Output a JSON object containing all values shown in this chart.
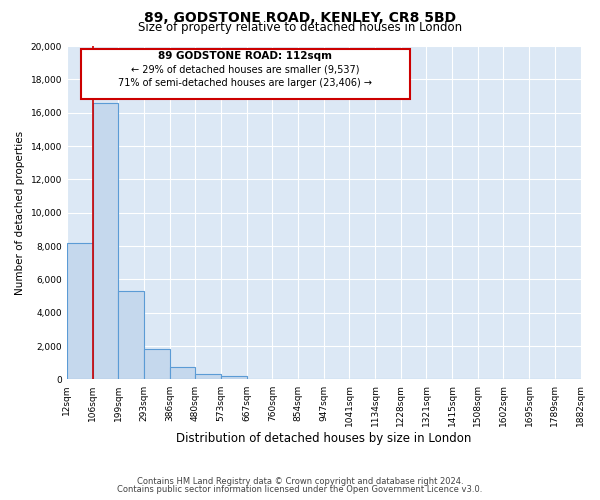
{
  "title": "89, GODSTONE ROAD, KENLEY, CR8 5BD",
  "subtitle": "Size of property relative to detached houses in London",
  "xlabel": "Distribution of detached houses by size in London",
  "ylabel": "Number of detached properties",
  "bin_labels": [
    "12sqm",
    "106sqm",
    "199sqm",
    "293sqm",
    "386sqm",
    "480sqm",
    "573sqm",
    "667sqm",
    "760sqm",
    "854sqm",
    "947sqm",
    "1041sqm",
    "1134sqm",
    "1228sqm",
    "1321sqm",
    "1415sqm",
    "1508sqm",
    "1602sqm",
    "1695sqm",
    "1789sqm",
    "1882sqm"
  ],
  "bar_heights": [
    8200,
    16600,
    5300,
    1800,
    750,
    300,
    200,
    0,
    0,
    0,
    0,
    0,
    0,
    0,
    0,
    0,
    0,
    0,
    0,
    0
  ],
  "bar_color": "#c5d8ed",
  "bar_edge_color": "#5b9bd5",
  "ylim": [
    0,
    20000
  ],
  "yticks": [
    0,
    2000,
    4000,
    6000,
    8000,
    10000,
    12000,
    14000,
    16000,
    18000,
    20000
  ],
  "property_line_x": 1,
  "property_line_color": "#cc0000",
  "annotation_title": "89 GODSTONE ROAD: 112sqm",
  "annotation_line1": "← 29% of detached houses are smaller (9,537)",
  "annotation_line2": "71% of semi-detached houses are larger (23,406) →",
  "annotation_box_color": "#ffffff",
  "annotation_box_edge": "#cc0000",
  "footer1": "Contains HM Land Registry data © Crown copyright and database right 2024.",
  "footer2": "Contains public sector information licensed under the Open Government Licence v3.0.",
  "figure_bg_color": "#ffffff",
  "plot_bg_color": "#dce8f5",
  "grid_color": "#ffffff",
  "title_fontsize": 10,
  "subtitle_fontsize": 8.5,
  "ylabel_fontsize": 7.5,
  "xlabel_fontsize": 8.5,
  "tick_fontsize": 6.5,
  "footer_fontsize": 6.0
}
